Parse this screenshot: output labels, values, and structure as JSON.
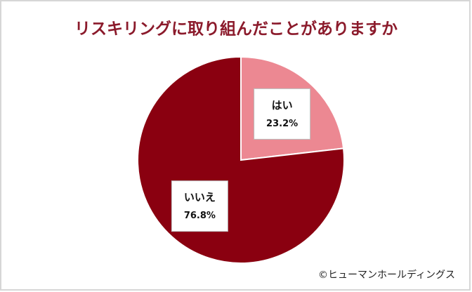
{
  "chart_data": {
    "type": "pie",
    "title": "リスキリングに取り組んだことがありますか",
    "categories": [
      "はい",
      "いいえ"
    ],
    "values": [
      23.2,
      76.8
    ],
    "value_labels": [
      "23.2%",
      "76.8%"
    ],
    "colors": [
      "#ec8892",
      "#8a0010"
    ],
    "copyright": "©ヒューマンホールディングス"
  }
}
